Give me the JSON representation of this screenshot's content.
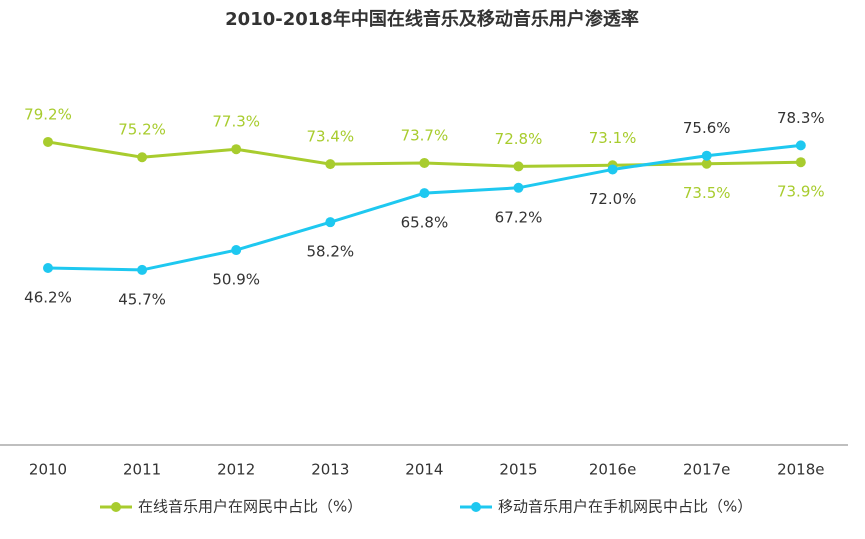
{
  "chart_data": {
    "type": "line",
    "title": "2010-2018年中国在线音乐及移动音乐用户渗透率",
    "categories": [
      "2010",
      "2011",
      "2012",
      "2013",
      "2014",
      "2015",
      "2016e",
      "2017e",
      "2018e"
    ],
    "ylim": [
      0,
      100
    ],
    "legend": "bottom",
    "series": [
      {
        "name": "在线音乐用户在网民中占比（%）",
        "color": "#a8cc2e",
        "label_color": "#a8cc2e",
        "values": [
          79.2,
          75.2,
          77.3,
          73.4,
          73.7,
          72.8,
          73.1,
          73.5,
          73.9
        ],
        "value_labels": [
          "79.2%",
          "75.2%",
          "77.3%",
          "73.4%",
          "73.7%",
          "72.8%",
          "73.1%",
          "73.5%",
          "73.9%"
        ]
      },
      {
        "name": "移动音乐用户在手机网民中占比（%）",
        "color": "#1ec8f0",
        "label_color": "#333333",
        "values": [
          46.2,
          45.7,
          50.9,
          58.2,
          65.8,
          67.2,
          72.0,
          75.6,
          78.3
        ],
        "value_labels": [
          "46.2%",
          "45.7%",
          "50.9%",
          "58.2%",
          "65.8%",
          "67.2%",
          "72.0%",
          "75.6%",
          "78.3%"
        ]
      }
    ]
  }
}
